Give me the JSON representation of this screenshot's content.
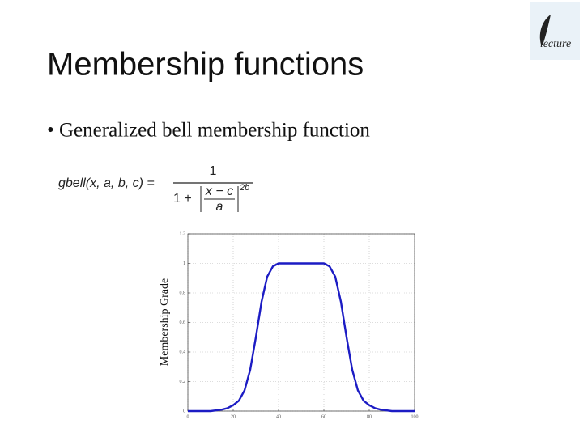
{
  "slide": {
    "title": "Membership functions",
    "bullet": "• Generalized bell membership function",
    "logo": "lecture",
    "formula": {
      "lhs": "gbell(x, a, b, c) =",
      "numerator": "1",
      "denominator_lead": "1 +",
      "fraction_top": "x − c",
      "fraction_bottom": "a",
      "exponent": "2b"
    }
  },
  "chart_data": {
    "type": "line",
    "ylabel": "Membership Grade",
    "x": [
      0,
      5,
      10,
      15,
      17.5,
      20,
      22.5,
      25,
      27.5,
      30,
      32.5,
      35,
      37.5,
      40,
      45,
      50,
      55,
      60,
      62.5,
      65,
      67.5,
      70,
      72.5,
      75,
      77.5,
      80,
      82.5,
      85,
      90,
      95,
      100
    ],
    "values": [
      0,
      0,
      0,
      0.01,
      0.02,
      0.04,
      0.07,
      0.14,
      0.28,
      0.5,
      0.74,
      0.91,
      0.98,
      1,
      1,
      1,
      1,
      1,
      0.98,
      0.91,
      0.74,
      0.5,
      0.28,
      0.14,
      0.07,
      0.04,
      0.02,
      0.01,
      0,
      0,
      0
    ],
    "color": "#1c1cc4",
    "xlim": [
      0,
      100
    ],
    "xticks": [
      0,
      20,
      40,
      60,
      80,
      100
    ],
    "ylim": [
      0,
      1.2
    ],
    "yticks": [
      0,
      0.2,
      0.4,
      0.6,
      0.8,
      1,
      1.2
    ],
    "grid": true
  }
}
